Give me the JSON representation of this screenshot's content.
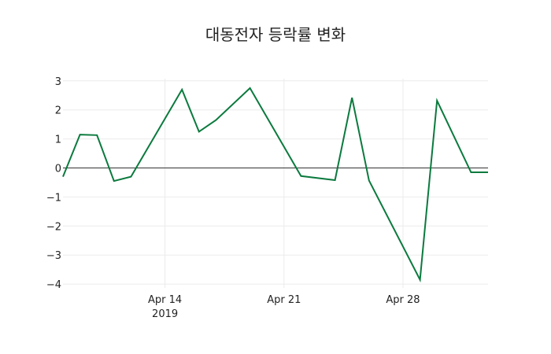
{
  "title": "대동전자 등락률 변화",
  "chart_data": {
    "type": "line",
    "title": "대동전자 등락률 변화",
    "xlabel": "",
    "ylabel": "",
    "x": [
      "2019-04-08",
      "2019-04-09",
      "2019-04-10",
      "2019-04-11",
      "2019-04-12",
      "2019-04-15",
      "2019-04-16",
      "2019-04-17",
      "2019-04-19",
      "2019-04-22",
      "2019-04-24",
      "2019-04-25",
      "2019-04-26",
      "2019-04-29",
      "2019-04-30",
      "2019-05-02",
      "2019-05-03"
    ],
    "series": [
      {
        "name": "등락률",
        "color": "#0b7a3e",
        "values": [
          -0.3,
          1.15,
          1.13,
          -0.45,
          -0.3,
          2.7,
          1.25,
          1.65,
          2.75,
          -0.28,
          -0.42,
          2.42,
          -0.43,
          -3.85,
          2.32,
          -0.15,
          -0.15
        ]
      }
    ],
    "ylim": [
      -4.1,
      3.1
    ],
    "xlim": [
      "2019-04-08",
      "2019-05-03"
    ],
    "yticks": [
      3,
      2,
      1,
      0,
      -1,
      -2,
      -3,
      -4
    ],
    "ytick_labels": [
      "3",
      "2",
      "1",
      "0",
      "−1",
      "−2",
      "−3",
      "−4"
    ],
    "xticks": [
      {
        "date": "2019-04-14",
        "label": "Apr 14",
        "sublabel": "2019"
      },
      {
        "date": "2019-04-21",
        "label": "Apr 21",
        "sublabel": ""
      },
      {
        "date": "2019-04-28",
        "label": "Apr 28",
        "sublabel": ""
      }
    ],
    "grid": true,
    "zero_line": true,
    "legend": "none"
  }
}
